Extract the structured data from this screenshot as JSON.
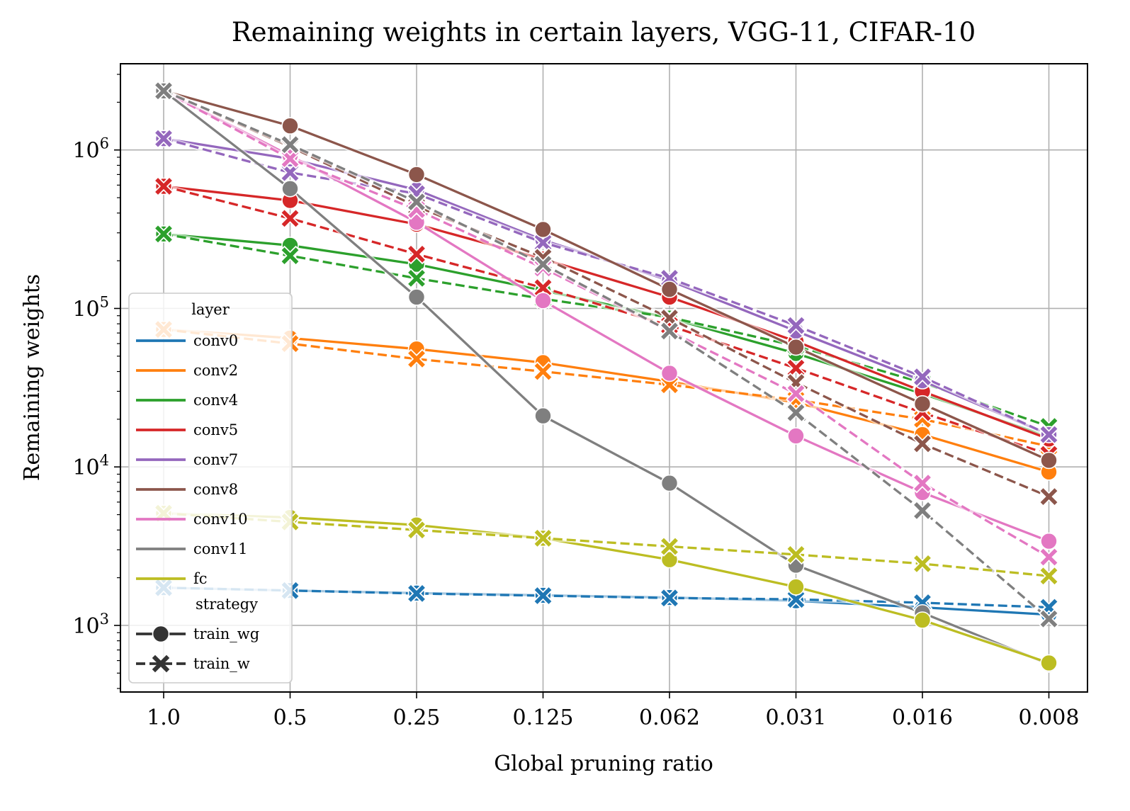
{
  "chart_data": {
    "type": "line",
    "title": "Remaining weights in certain layers, VGG-11, CIFAR-10",
    "xlabel": "Global pruning ratio",
    "ylabel": "Remaining weights",
    "yscale": "log",
    "ylim": [
      380,
      3500000
    ],
    "grid": true,
    "categories": [
      "1.0",
      "0.5",
      "0.25",
      "0.125",
      "0.062",
      "0.031",
      "0.016",
      "0.008"
    ],
    "y_ticks": [
      {
        "value": 1000,
        "base": "10",
        "exp": "3"
      },
      {
        "value": 10000,
        "base": "10",
        "exp": "4"
      },
      {
        "value": 100000,
        "base": "10",
        "exp": "5"
      },
      {
        "value": 1000000,
        "base": "10",
        "exp": "6"
      }
    ],
    "legend": {
      "position": "lower-left",
      "layer_title": "layer",
      "strategy_title": "strategy",
      "strategies": [
        {
          "name": "train_wg",
          "marker": "circle",
          "dash": "solid"
        },
        {
          "name": "train_w",
          "marker": "x",
          "dash": "dashed"
        }
      ]
    },
    "series": [
      {
        "layer": "conv0",
        "color": "#1f77b4",
        "train_wg": [
          1730,
          1660,
          1600,
          1550,
          1500,
          1430,
          1300,
          1170
        ],
        "train_w": [
          1730,
          1660,
          1590,
          1540,
          1490,
          1460,
          1390,
          1300
        ]
      },
      {
        "layer": "conv2",
        "color": "#ff7f0e",
        "train_wg": [
          73700,
          65000,
          55500,
          45500,
          34500,
          25500,
          16000,
          9300
        ],
        "train_w": [
          73700,
          60000,
          48000,
          40000,
          33000,
          26500,
          20000,
          13500
        ]
      },
      {
        "layer": "conv4",
        "color": "#2ca02c",
        "train_wg": [
          295000,
          250000,
          190000,
          130000,
          87000,
          52000,
          29000,
          15500
        ],
        "train_w": [
          295000,
          215000,
          155000,
          115000,
          88000,
          58000,
          34000,
          18000
        ]
      },
      {
        "layer": "conv5",
        "color": "#d62728",
        "train_wg": [
          590000,
          480000,
          340000,
          205000,
          118000,
          62000,
          30000,
          15000
        ],
        "train_w": [
          590000,
          370000,
          220000,
          135000,
          78000,
          42000,
          22000,
          12000
        ]
      },
      {
        "layer": "conv7",
        "color": "#9467bd",
        "train_wg": [
          1180000,
          880000,
          560000,
          270000,
          150000,
          72000,
          35000,
          16000
        ],
        "train_w": [
          1180000,
          720000,
          530000,
          260000,
          155000,
          78000,
          37000,
          16000
        ]
      },
      {
        "layer": "conv8",
        "color": "#8c564b",
        "train_wg": [
          2360000,
          1420000,
          700000,
          315000,
          132000,
          57000,
          25000,
          11000
        ],
        "train_w": [
          2360000,
          1050000,
          440000,
          210000,
          87000,
          34000,
          14000,
          6500
        ]
      },
      {
        "layer": "conv10",
        "color": "#e377c2",
        "train_wg": [
          2360000,
          920000,
          350000,
          112000,
          39000,
          15700,
          6900,
          3400
        ],
        "train_w": [
          2360000,
          880000,
          420000,
          180000,
          72000,
          29000,
          7900,
          2700
        ]
      },
      {
        "layer": "conv11",
        "color": "#7f7f7f",
        "train_wg": [
          2360000,
          570000,
          118000,
          21000,
          7900,
          2400,
          1200,
          570
        ],
        "train_w": [
          2360000,
          1080000,
          470000,
          190000,
          72000,
          22000,
          5300,
          1100
        ]
      },
      {
        "layer": "fc",
        "color": "#bcbd22",
        "train_wg": [
          5100,
          4800,
          4300,
          3550,
          2600,
          1750,
          1080,
          580
        ],
        "train_w": [
          5100,
          4500,
          4000,
          3550,
          3150,
          2800,
          2450,
          2050
        ]
      }
    ]
  }
}
